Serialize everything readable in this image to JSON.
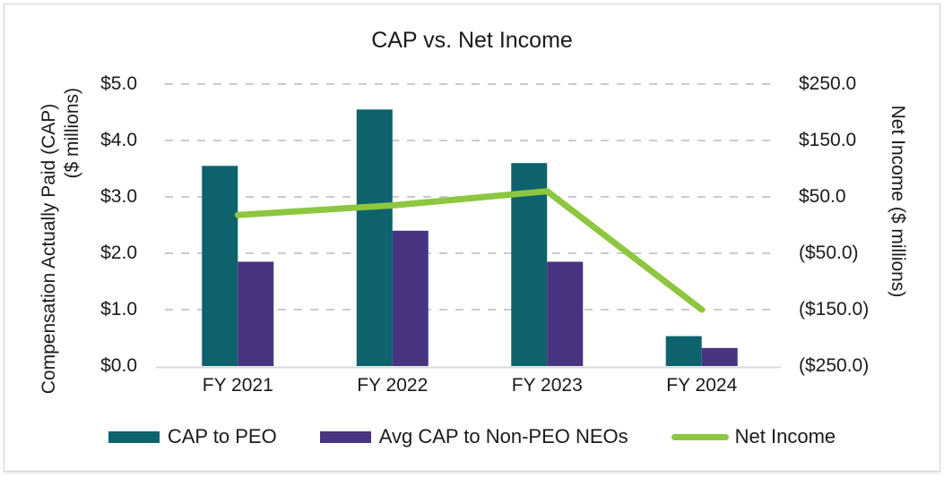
{
  "title": "CAP vs. Net Income",
  "colors": {
    "cap_to_peo": "#0e626c",
    "avg_cap_non_peo": "#483480",
    "net_income": "#8dc63f",
    "gridline": "#cbcbcb",
    "axis_line": "#d9d9d9",
    "text": "#1a1a1a"
  },
  "left_axis": {
    "title_line1": "Compensation Actually Paid (CAP)",
    "title_line2": "($ millions)",
    "tick_labels": [
      "$5.0",
      "$4.0",
      "$3.0",
      "$2.0",
      "$1.0",
      "$0.0"
    ],
    "tick_values": [
      5,
      4,
      3,
      2,
      1,
      0
    ]
  },
  "right_axis": {
    "title": "Net Income ($ millions)",
    "tick_labels": [
      "$250.0",
      "$150.0",
      "$50.0",
      "($50.0)",
      "($150.0)",
      "($250.0)"
    ],
    "tick_values": [
      250,
      150,
      50,
      -50,
      -150,
      -250
    ]
  },
  "chart_data": {
    "type": "bar",
    "title": "CAP vs. Net Income",
    "categories": [
      "FY 2021",
      "FY 2022",
      "FY 2023",
      "FY 2024"
    ],
    "series": [
      {
        "name": "CAP to PEO",
        "kind": "bar",
        "axis": "left",
        "color": "#0e626c",
        "values": [
          3.55,
          4.55,
          3.6,
          0.53
        ]
      },
      {
        "name": "Avg CAP to Non-PEO NEOs",
        "kind": "bar",
        "axis": "left",
        "color": "#483480",
        "values": [
          1.85,
          2.4,
          1.85,
          0.32
        ]
      },
      {
        "name": "Net Income",
        "kind": "line",
        "axis": "right",
        "color": "#8dc63f",
        "values": [
          18,
          35,
          60,
          -150
        ]
      }
    ],
    "left_ylabel": "Compensation Actually Paid (CAP) ($ millions)",
    "right_ylabel": "Net Income ($ millions)",
    "left_ylim": [
      0,
      5
    ],
    "right_ylim": [
      -250,
      250
    ],
    "grid": "horizontal-dashed",
    "legend_position": "bottom"
  },
  "legend": [
    {
      "label": "CAP to PEO",
      "swatch": "rect",
      "color": "#0e626c"
    },
    {
      "label": "Avg CAP to Non-PEO NEOs",
      "swatch": "rect",
      "color": "#483480"
    },
    {
      "label": "Net Income",
      "swatch": "line",
      "color": "#8dc63f"
    }
  ]
}
